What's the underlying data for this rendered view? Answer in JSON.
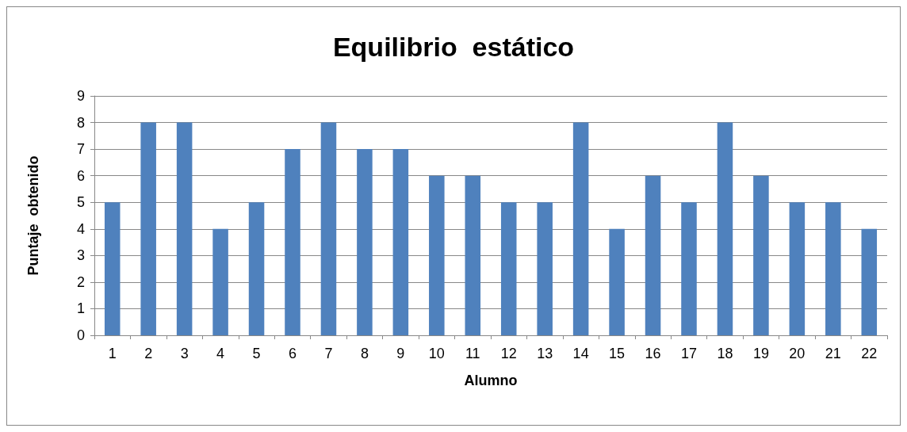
{
  "chart_data": {
    "type": "bar",
    "title": "Equilibrio  estático",
    "xlabel": "Alumno",
    "ylabel": "Puntaje  obtenido",
    "categories": [
      "1",
      "2",
      "3",
      "4",
      "5",
      "6",
      "7",
      "8",
      "9",
      "10",
      "11",
      "12",
      "13",
      "14",
      "15",
      "16",
      "17",
      "18",
      "19",
      "20",
      "21",
      "22"
    ],
    "values": [
      5,
      8,
      8,
      4,
      5,
      7,
      8,
      7,
      7,
      6,
      6,
      5,
      5,
      8,
      4,
      6,
      5,
      8,
      6,
      5,
      5,
      4
    ],
    "color": "#4f81bd",
    "ylim": [
      0,
      9
    ],
    "yticks": [
      0,
      1,
      2,
      3,
      4,
      5,
      6,
      7,
      8,
      9
    ],
    "grid": "y"
  }
}
